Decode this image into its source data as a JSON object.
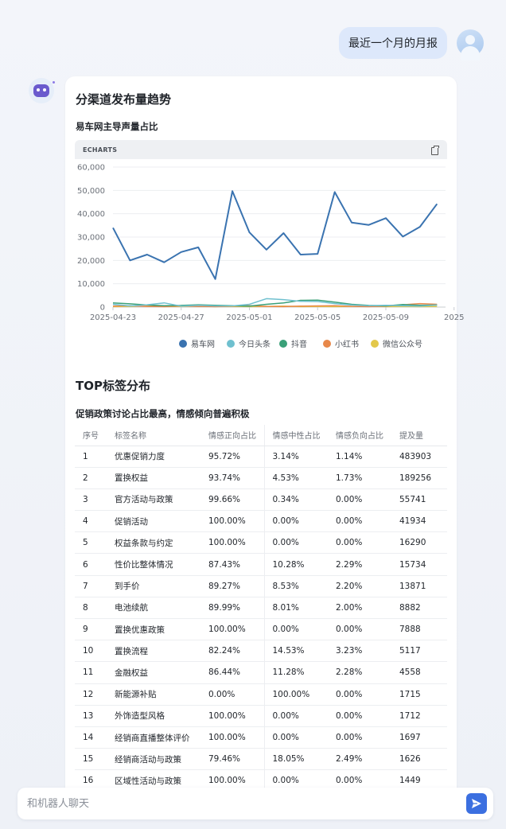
{
  "user": {
    "message": "最近一个月的月报"
  },
  "report": {
    "section1_title": "分渠道发布量趋势",
    "chart_subtitle": "易车网主导声量占比",
    "chart_tag": "ECHARTS",
    "section2_title": "TOP标签分布",
    "table_subtitle": "促销政策讨论占比最高，情感倾向普遍积极"
  },
  "chart_data": {
    "type": "line",
    "x": [
      "2025-04-23",
      "2025-04-24",
      "2025-04-25",
      "2025-04-26",
      "2025-04-27",
      "2025-04-28",
      "2025-04-29",
      "2025-04-30",
      "2025-05-01",
      "2025-05-02",
      "2025-05-03",
      "2025-05-04",
      "2025-05-05",
      "2025-05-06",
      "2025-05-07",
      "2025-05-08",
      "2025-05-09",
      "2025-05-10",
      "2025-05-11",
      "2025-05-12"
    ],
    "x_tick_labels": [
      "2025-04-23",
      "2025-04-27",
      "2025-05-01",
      "2025-05-05",
      "2025-05-09",
      "2025"
    ],
    "y_ticks": [
      "60,000",
      "50,000",
      "40,000",
      "30,000",
      "20,000",
      "10,000",
      "0"
    ],
    "ylim": [
      0,
      60000
    ],
    "grid": true,
    "legend_position": "bottom",
    "series": [
      {
        "name": "易车网",
        "color": "#3a73b0",
        "values": [
          34000,
          20000,
          22500,
          19200,
          23600,
          25600,
          12000,
          49700,
          32000,
          24600,
          31700,
          22500,
          22800,
          49300,
          36200,
          35200,
          38100,
          30200,
          34400,
          44200
        ]
      },
      {
        "name": "今日头条",
        "color": "#6fc0cf",
        "values": [
          1200,
          500,
          1000,
          1800,
          400,
          800,
          500,
          500,
          1200,
          3600,
          3200,
          2500,
          2400,
          1500,
          900,
          600,
          800,
          600,
          400,
          900
        ]
      },
      {
        "name": "抖音",
        "color": "#3aa078",
        "values": [
          1800,
          1400,
          900,
          600,
          700,
          1000,
          800,
          600,
          400,
          1200,
          1800,
          2900,
          3000,
          2100,
          1200,
          700,
          500,
          1100,
          800,
          900
        ]
      },
      {
        "name": "小红书",
        "color": "#e8884a",
        "values": [
          400,
          600,
          300,
          200,
          500,
          300,
          200,
          400,
          600,
          300,
          200,
          400,
          500,
          600,
          300,
          200,
          400,
          1000,
          1500,
          1200
        ]
      },
      {
        "name": "微信公众号",
        "color": "#e3c84a",
        "values": [
          200,
          300,
          500,
          200,
          300,
          400,
          200,
          300,
          200,
          300,
          400,
          200,
          300,
          200,
          300,
          400,
          200,
          300,
          200,
          300
        ]
      }
    ]
  },
  "table": {
    "headers": [
      "序号",
      "标签名称",
      "情感正向占比",
      "情感中性占比",
      "情感负向占比",
      "提及量"
    ],
    "rows": [
      [
        "1",
        "优惠促销力度",
        "95.72%",
        "3.14%",
        "1.14%",
        "483903"
      ],
      [
        "2",
        "置换权益",
        "93.74%",
        "4.53%",
        "1.73%",
        "189256"
      ],
      [
        "3",
        "官方活动与政策",
        "99.66%",
        "0.34%",
        "0.00%",
        "55741"
      ],
      [
        "4",
        "促销活动",
        "100.00%",
        "0.00%",
        "0.00%",
        "41934"
      ],
      [
        "5",
        "权益条款与约定",
        "100.00%",
        "0.00%",
        "0.00%",
        "16290"
      ],
      [
        "6",
        "性价比整体情况",
        "87.43%",
        "10.28%",
        "2.29%",
        "15734"
      ],
      [
        "7",
        "到手价",
        "89.27%",
        "8.53%",
        "2.20%",
        "13871"
      ],
      [
        "8",
        "电池续航",
        "89.99%",
        "8.01%",
        "2.00%",
        "8882"
      ],
      [
        "9",
        "置换优惠政策",
        "100.00%",
        "0.00%",
        "0.00%",
        "7888"
      ],
      [
        "10",
        "置换流程",
        "82.24%",
        "14.53%",
        "3.23%",
        "5117"
      ],
      [
        "11",
        "金融权益",
        "86.44%",
        "11.28%",
        "2.28%",
        "4558"
      ],
      [
        "12",
        "新能源补贴",
        "0.00%",
        "100.00%",
        "0.00%",
        "1715"
      ],
      [
        "13",
        "外饰造型风格",
        "100.00%",
        "0.00%",
        "0.00%",
        "1712"
      ],
      [
        "14",
        "经销商直播整体评价",
        "100.00%",
        "0.00%",
        "0.00%",
        "1697"
      ],
      [
        "15",
        "经销商活动与政策",
        "79.46%",
        "18.05%",
        "2.49%",
        "1626"
      ],
      [
        "16",
        "区域性活动与政策",
        "100.00%",
        "0.00%",
        "0.00%",
        "1449"
      ]
    ]
  },
  "input": {
    "placeholder": "和机器人聊天"
  },
  "colors": {
    "accent": "#3b6fe0",
    "user_bubble": "#dde8fb"
  },
  "icons": {
    "copy": "copy-icon",
    "send": "send-icon",
    "user": "user-avatar-icon",
    "bot": "robot-avatar-icon"
  }
}
